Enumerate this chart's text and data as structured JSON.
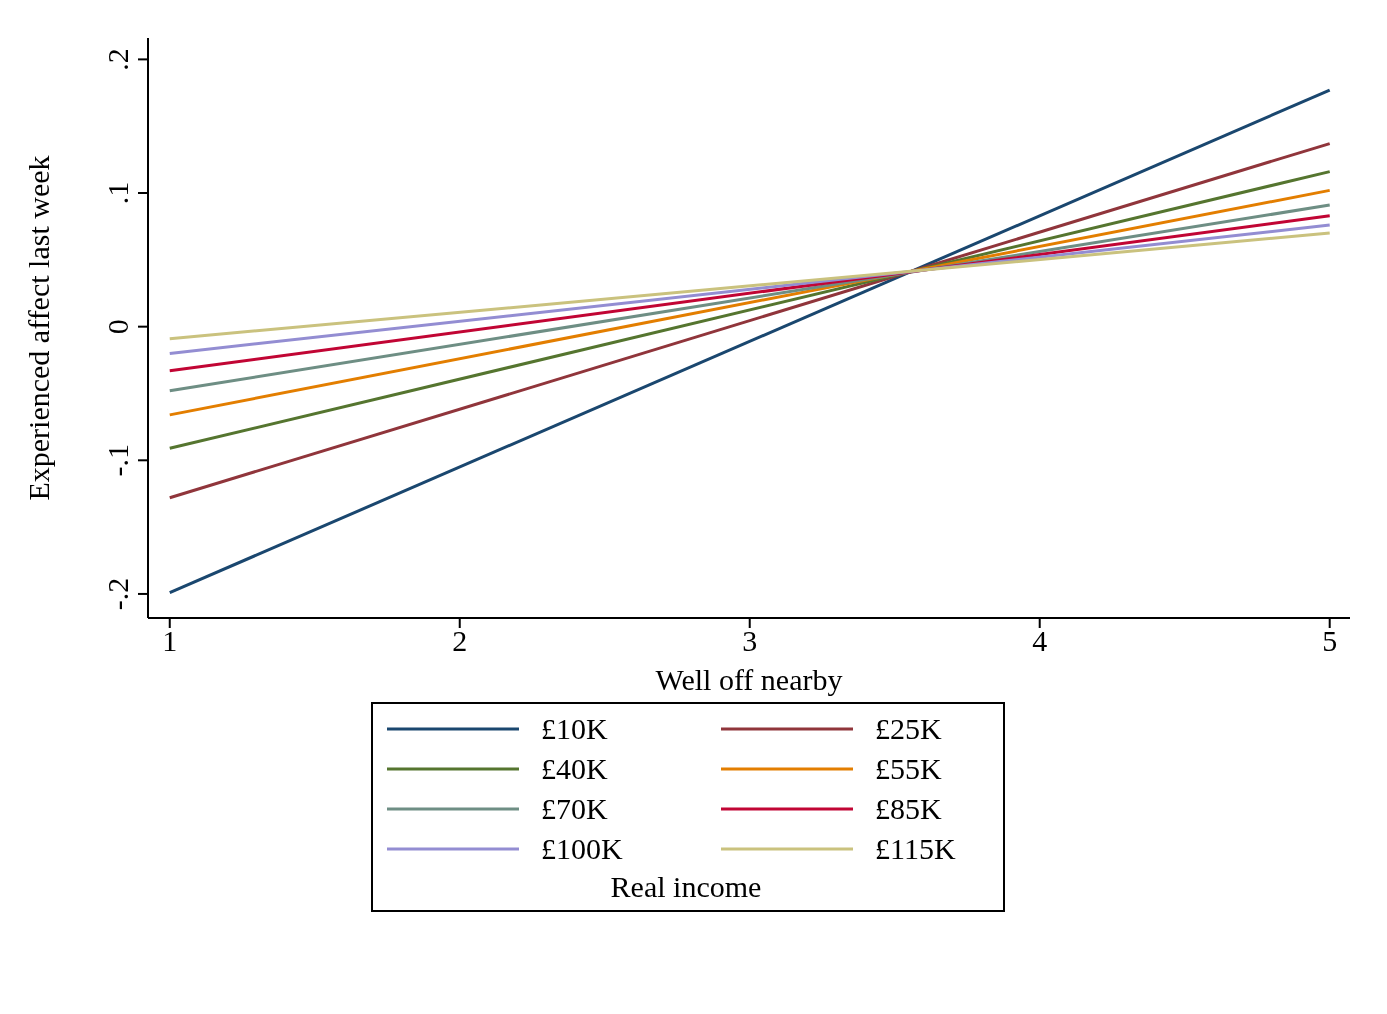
{
  "chart_data": {
    "type": "line",
    "xlabel": "Well off nearby",
    "ylabel": "Experienced affect last week",
    "legend_title": "Real income",
    "legend": "bottom",
    "grid": false,
    "marker": "none",
    "line_style": "solid",
    "x": [
      1,
      5
    ],
    "xlim": [
      0.925,
      5.07
    ],
    "xticks": [
      1,
      2,
      3,
      4,
      5
    ],
    "ylim": [
      -0.218,
      0.216
    ],
    "yticks": [
      {
        "value": -0.2,
        "label": "-.2"
      },
      {
        "value": -0.1,
        "label": "-.1"
      },
      {
        "value": 0,
        "label": "0"
      },
      {
        "value": 0.1,
        "label": ".1"
      },
      {
        "value": 0.2,
        "label": ".2"
      }
    ],
    "series": [
      {
        "name": "£10K",
        "color": "#1a476f",
        "values": [
          -0.199,
          0.177
        ]
      },
      {
        "name": "£25K",
        "color": "#90353b",
        "values": [
          -0.128,
          0.137
        ]
      },
      {
        "name": "£40K",
        "color": "#55752f",
        "values": [
          -0.091,
          0.116
        ]
      },
      {
        "name": "£55K",
        "color": "#e37e00",
        "values": [
          -0.066,
          0.102
        ]
      },
      {
        "name": "£70K",
        "color": "#6e8e84",
        "values": [
          -0.048,
          0.091
        ]
      },
      {
        "name": "£85K",
        "color": "#c10534",
        "values": [
          -0.033,
          0.083
        ]
      },
      {
        "name": "£100K",
        "color": "#938dd2",
        "values": [
          -0.02,
          0.076
        ]
      },
      {
        "name": "£115K",
        "color": "#cac27e",
        "values": [
          -0.009,
          0.07
        ]
      }
    ]
  }
}
